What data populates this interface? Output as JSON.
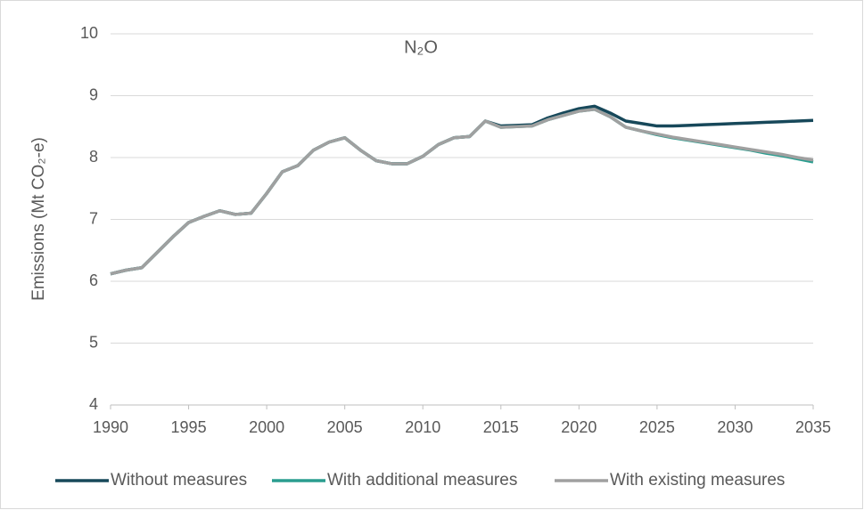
{
  "chart_data": {
    "type": "line",
    "title": "N₂O",
    "y_label": "Emissions (Mt CO₂-e)",
    "x": [
      1990,
      1991,
      1992,
      1993,
      1994,
      1995,
      1996,
      1997,
      1998,
      1999,
      2000,
      2001,
      2002,
      2003,
      2004,
      2005,
      2006,
      2007,
      2008,
      2009,
      2010,
      2011,
      2012,
      2013,
      2014,
      2015,
      2016,
      2017,
      2018,
      2019,
      2020,
      2021,
      2022,
      2023,
      2024,
      2025,
      2026,
      2027,
      2028,
      2029,
      2030,
      2031,
      2032,
      2033,
      2034,
      2035
    ],
    "series": [
      {
        "name": "Without measures",
        "color": "#17485a",
        "values": [
          6.12,
          6.18,
          6.22,
          6.47,
          6.72,
          6.95,
          7.05,
          7.14,
          7.08,
          7.1,
          7.42,
          7.77,
          7.87,
          8.12,
          8.25,
          8.32,
          8.12,
          7.95,
          7.9,
          7.9,
          8.02,
          8.21,
          8.32,
          8.34,
          8.59,
          8.51,
          8.52,
          8.53,
          8.64,
          8.72,
          8.79,
          8.83,
          8.72,
          8.59,
          8.55,
          8.51,
          8.51,
          8.52,
          8.53,
          8.54,
          8.55,
          8.56,
          8.57,
          8.58,
          8.59,
          8.6
        ]
      },
      {
        "name": "With additional measures",
        "color": "#2a9d8f",
        "values": [
          6.12,
          6.18,
          6.22,
          6.47,
          6.72,
          6.95,
          7.05,
          7.14,
          7.08,
          7.1,
          7.42,
          7.77,
          7.87,
          8.12,
          8.25,
          8.32,
          8.12,
          7.95,
          7.9,
          7.9,
          8.02,
          8.21,
          8.32,
          8.34,
          8.59,
          8.49,
          8.5,
          8.51,
          8.61,
          8.68,
          8.75,
          8.78,
          8.66,
          8.49,
          8.43,
          8.37,
          8.32,
          8.28,
          8.24,
          8.2,
          8.16,
          8.12,
          8.07,
          8.03,
          7.98,
          7.93
        ]
      },
      {
        "name": "With existing measures",
        "color": "#a0a0a0",
        "values": [
          6.12,
          6.18,
          6.22,
          6.47,
          6.72,
          6.95,
          7.05,
          7.14,
          7.08,
          7.1,
          7.42,
          7.77,
          7.87,
          8.12,
          8.25,
          8.32,
          8.12,
          7.95,
          7.9,
          7.9,
          8.02,
          8.21,
          8.32,
          8.34,
          8.59,
          8.49,
          8.5,
          8.51,
          8.61,
          8.68,
          8.75,
          8.78,
          8.66,
          8.49,
          8.43,
          8.38,
          8.33,
          8.29,
          8.25,
          8.21,
          8.17,
          8.13,
          8.09,
          8.05,
          8.0,
          7.96
        ]
      }
    ],
    "xlim": [
      1990,
      2035
    ],
    "xticks": [
      1990,
      1995,
      2000,
      2005,
      2010,
      2015,
      2020,
      2025,
      2030,
      2035
    ],
    "ylim": [
      4,
      10
    ],
    "yticks": [
      4,
      5,
      6,
      7,
      8,
      9,
      10
    ],
    "grid": true,
    "legend": "bottom"
  }
}
